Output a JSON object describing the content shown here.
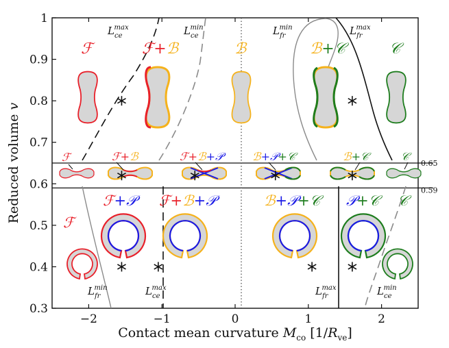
{
  "chart_data": {
    "type": "scatter",
    "xlabel": "Contact mean curvature M_co [1/R_ve]",
    "ylabel": "Reduced volume v",
    "xlim": [
      -2.5,
      2.5
    ],
    "ylim": [
      0.3,
      1.0
    ],
    "x_ticks": [
      -2,
      -1,
      0,
      1,
      2
    ],
    "y_ticks": [
      0.3,
      0.4,
      0.5,
      0.6,
      0.7,
      0.8,
      0.9,
      1.0
    ],
    "band_labels": [
      "0.65",
      "0.59"
    ],
    "boundaries": [
      {
        "label": "L_ce^max",
        "style": "dashed",
        "color": "#111111"
      },
      {
        "label": "L_ce^min",
        "style": "dashed",
        "color": "#8a8a8a"
      },
      {
        "label": "L_fr^min",
        "style": "solid",
        "color": "#8a8a8a"
      },
      {
        "label": "L_fr^max",
        "style": "solid",
        "color": "#111111"
      }
    ],
    "regions_top": [
      "F",
      "F+B",
      "B",
      "B+C",
      "C"
    ],
    "regions_mid": [
      "F",
      "F+B",
      "F+B+P",
      "B+P+C",
      "B+C",
      "C"
    ],
    "regions_bottom": [
      "F",
      "F+P",
      "F+B+P",
      "B+P+C",
      "P+C",
      "C"
    ],
    "marker_points": [
      {
        "x": -1.55,
        "y": 0.8
      },
      {
        "x": 1.6,
        "y": 0.8
      },
      {
        "x": -1.55,
        "y": 0.62
      },
      {
        "x": -0.55,
        "y": 0.62
      },
      {
        "x": 0.55,
        "y": 0.62
      },
      {
        "x": 1.6,
        "y": 0.62
      },
      {
        "x": -1.55,
        "y": 0.4
      },
      {
        "x": -1.05,
        "y": 0.4
      },
      {
        "x": 1.05,
        "y": 0.4
      },
      {
        "x": 1.6,
        "y": 0.4
      }
    ],
    "colors": {
      "F": "#e8202a",
      "B": "#f5b21c",
      "C": "#1e7d1e",
      "P": "#1a1ae6",
      "shape_fill": "#d6d6d6"
    }
  }
}
